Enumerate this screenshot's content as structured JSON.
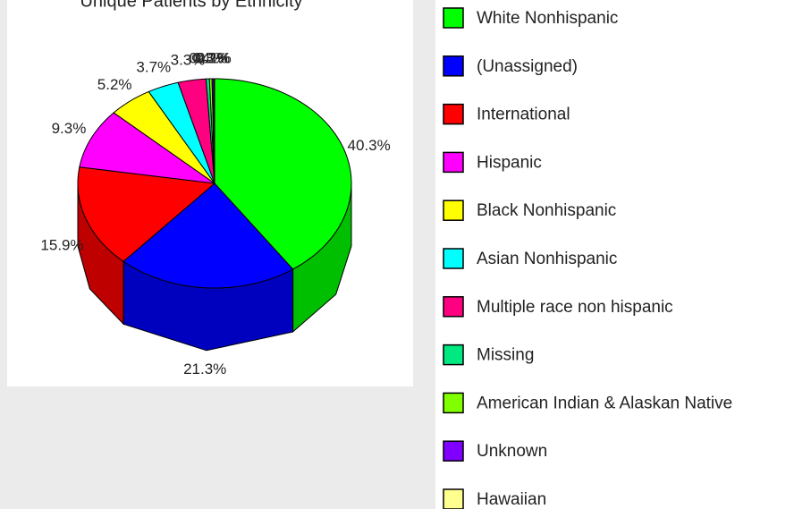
{
  "chart_data": {
    "type": "pie",
    "title": "Unique Patients by Ethnicity",
    "categories": [
      "White Nonhispanic",
      "(Unassigned)",
      "International",
      "Hispanic",
      "Black Nonhispanic",
      "Asian Nonhispanic",
      "Multiple race non hispanic",
      "Missing",
      "American Indian & Alaskan Native",
      "Unknown",
      "Hawaiian"
    ],
    "values": [
      40.3,
      21.3,
      15.9,
      9.3,
      5.2,
      3.7,
      3.3,
      0.4,
      0.3,
      0.2,
      0.1
    ],
    "value_labels": [
      "40.3%",
      "21.3%",
      "15.9%",
      "9.3%",
      "5.2%",
      "3.7%",
      "3.3%",
      "0.4%",
      "0.3%",
      "0.2%",
      "0.1%"
    ],
    "colors": [
      "#00ff00",
      "#0000ff",
      "#ff0000",
      "#ff00ff",
      "#ffff00",
      "#00ffff",
      "#ff0080",
      "#00e880",
      "#80ff00",
      "#8000ff",
      "#ffff90"
    ]
  }
}
